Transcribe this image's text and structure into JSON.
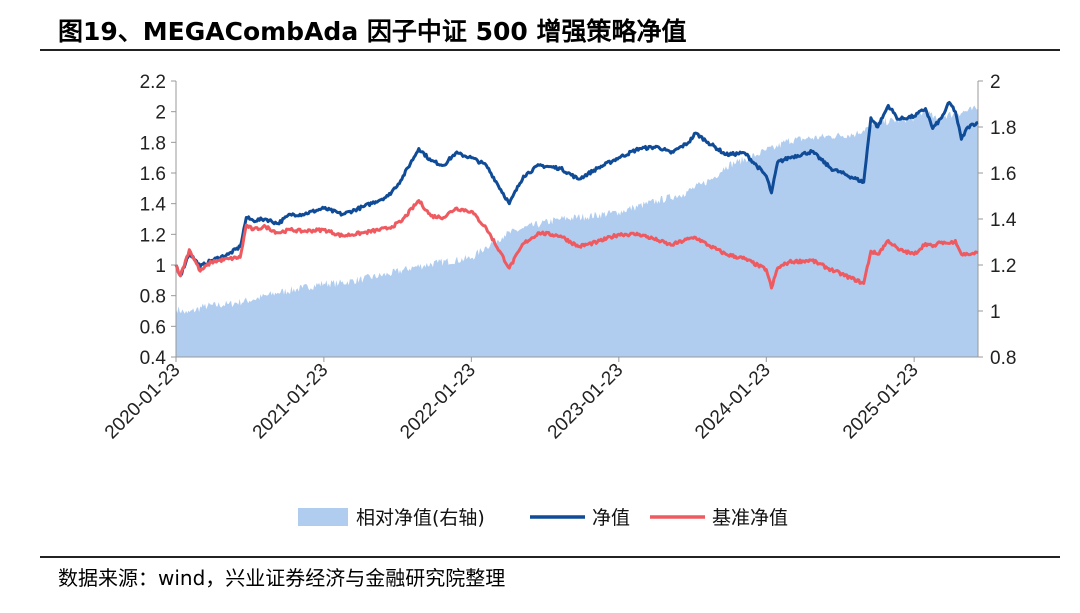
{
  "title": "图19、MEGACombAda 因子中证 500 增强策略净值",
  "source": "数据来源：wind，兴业证券经济与金融研究院整理",
  "colors": {
    "area": "#b0cdf0",
    "net_value": "#0f4b96",
    "benchmark": "#ee5a5f",
    "axis": "#999999"
  },
  "chart_data": {
    "type": "line",
    "x_tick_labels": [
      "2020-01-23",
      "2021-01-23",
      "2022-01-23",
      "2023-01-23",
      "2024-01-23",
      "2025-01-23"
    ],
    "x_range": [
      "2020-01-23",
      "2025-06-30"
    ],
    "y_left": {
      "range": [
        0.4,
        2.2
      ],
      "ticks": [
        "0.4",
        "0.6",
        "0.8",
        "1",
        "1.2",
        "1.4",
        "1.6",
        "1.8",
        "2",
        "2.2"
      ]
    },
    "y_right": {
      "range": [
        0.8,
        2.0
      ],
      "ticks": [
        "0.8",
        "1",
        "1.2",
        "1.4",
        "1.6",
        "1.8",
        "2"
      ]
    },
    "grid": false,
    "legend_position": "bottom",
    "series": [
      {
        "name": "相对净值(右轴)",
        "type": "area",
        "axis": "right",
        "points": [
          [
            "2020-01-23",
            1.01
          ],
          [
            "2020-02-20",
            0.99
          ],
          [
            "2020-04-01",
            1.02
          ],
          [
            "2020-06-01",
            1.03
          ],
          [
            "2020-08-01",
            1.05
          ],
          [
            "2020-10-01",
            1.08
          ],
          [
            "2020-12-01",
            1.1
          ],
          [
            "2021-01-23",
            1.12
          ],
          [
            "2021-03-01",
            1.12
          ],
          [
            "2021-05-01",
            1.14
          ],
          [
            "2021-07-01",
            1.16
          ],
          [
            "2021-09-01",
            1.19
          ],
          [
            "2021-11-01",
            1.21
          ],
          [
            "2022-01-23",
            1.23
          ],
          [
            "2022-03-01",
            1.28
          ],
          [
            "2022-04-15",
            1.33
          ],
          [
            "2022-06-01",
            1.36
          ],
          [
            "2022-07-15",
            1.38
          ],
          [
            "2022-09-01",
            1.4
          ],
          [
            "2022-11-01",
            1.41
          ],
          [
            "2023-01-23",
            1.43
          ],
          [
            "2023-03-01",
            1.45
          ],
          [
            "2023-05-01",
            1.48
          ],
          [
            "2023-07-01",
            1.51
          ],
          [
            "2023-08-15",
            1.55
          ],
          [
            "2023-09-15",
            1.58
          ],
          [
            "2023-10-15",
            1.63
          ],
          [
            "2023-11-15",
            1.65
          ],
          [
            "2024-01-01",
            1.68
          ],
          [
            "2024-01-23",
            1.7
          ],
          [
            "2024-02-15",
            1.71
          ],
          [
            "2024-03-15",
            1.74
          ],
          [
            "2024-05-01",
            1.75
          ],
          [
            "2024-07-01",
            1.76
          ],
          [
            "2024-09-01",
            1.77
          ],
          [
            "2024-10-01",
            1.8
          ],
          [
            "2024-11-01",
            1.82
          ],
          [
            "2025-01-23",
            1.84
          ],
          [
            "2025-02-20",
            1.87
          ],
          [
            "2025-03-20",
            1.83
          ],
          [
            "2025-04-10",
            1.85
          ],
          [
            "2025-05-10",
            1.86
          ],
          [
            "2025-06-30",
            1.88
          ]
        ]
      },
      {
        "name": "净值",
        "type": "line",
        "axis": "left",
        "points": [
          [
            "2020-01-23",
            1.0
          ],
          [
            "2020-02-03",
            0.93
          ],
          [
            "2020-02-25",
            1.08
          ],
          [
            "2020-03-23",
            0.99
          ],
          [
            "2020-04-20",
            1.03
          ],
          [
            "2020-06-01",
            1.07
          ],
          [
            "2020-06-30",
            1.12
          ],
          [
            "2020-07-15",
            1.31
          ],
          [
            "2020-08-01",
            1.29
          ],
          [
            "2020-09-01",
            1.3
          ],
          [
            "2020-10-01",
            1.27
          ],
          [
            "2020-11-01",
            1.33
          ],
          [
            "2020-12-01",
            1.33
          ],
          [
            "2021-01-23",
            1.37
          ],
          [
            "2021-03-10",
            1.33
          ],
          [
            "2021-05-01",
            1.38
          ],
          [
            "2021-07-01",
            1.45
          ],
          [
            "2021-08-01",
            1.55
          ],
          [
            "2021-09-15",
            1.76
          ],
          [
            "2021-10-15",
            1.68
          ],
          [
            "2021-11-15",
            1.65
          ],
          [
            "2021-12-15",
            1.73
          ],
          [
            "2022-01-23",
            1.7
          ],
          [
            "2022-03-01",
            1.65
          ],
          [
            "2022-04-27",
            1.4
          ],
          [
            "2022-06-01",
            1.58
          ],
          [
            "2022-07-10",
            1.65
          ],
          [
            "2022-09-01",
            1.63
          ],
          [
            "2022-10-15",
            1.56
          ],
          [
            "2022-12-01",
            1.63
          ],
          [
            "2023-01-23",
            1.7
          ],
          [
            "2023-03-15",
            1.76
          ],
          [
            "2023-05-01",
            1.77
          ],
          [
            "2023-06-01",
            1.73
          ],
          [
            "2023-07-15",
            1.8
          ],
          [
            "2023-08-01",
            1.86
          ],
          [
            "2023-09-01",
            1.8
          ],
          [
            "2023-10-15",
            1.72
          ],
          [
            "2023-12-01",
            1.73
          ],
          [
            "2024-01-23",
            1.58
          ],
          [
            "2024-02-05",
            1.47
          ],
          [
            "2024-02-20",
            1.67
          ],
          [
            "2024-03-20",
            1.7
          ],
          [
            "2024-05-15",
            1.74
          ],
          [
            "2024-07-01",
            1.63
          ],
          [
            "2024-09-20",
            1.54
          ],
          [
            "2024-10-08",
            1.96
          ],
          [
            "2024-10-25",
            1.9
          ],
          [
            "2024-11-20",
            2.04
          ],
          [
            "2024-12-15",
            1.95
          ],
          [
            "2025-01-23",
            1.97
          ],
          [
            "2025-02-20",
            2.02
          ],
          [
            "2025-03-10",
            1.89
          ],
          [
            "2025-04-01",
            1.96
          ],
          [
            "2025-04-20",
            2.06
          ],
          [
            "2025-05-05",
            2.0
          ],
          [
            "2025-05-20",
            1.82
          ],
          [
            "2025-06-05",
            1.9
          ],
          [
            "2025-06-30",
            1.93
          ]
        ]
      },
      {
        "name": "基准净值",
        "type": "line",
        "axis": "left",
        "points": [
          [
            "2020-01-23",
            1.0
          ],
          [
            "2020-02-03",
            0.93
          ],
          [
            "2020-02-25",
            1.1
          ],
          [
            "2020-03-23",
            0.96
          ],
          [
            "2020-04-20",
            1.02
          ],
          [
            "2020-06-01",
            1.04
          ],
          [
            "2020-06-30",
            1.05
          ],
          [
            "2020-07-15",
            1.26
          ],
          [
            "2020-08-01",
            1.23
          ],
          [
            "2020-09-01",
            1.25
          ],
          [
            "2020-10-01",
            1.21
          ],
          [
            "2020-11-01",
            1.23
          ],
          [
            "2020-12-01",
            1.22
          ],
          [
            "2021-01-23",
            1.23
          ],
          [
            "2021-03-10",
            1.19
          ],
          [
            "2021-05-01",
            1.21
          ],
          [
            "2021-07-01",
            1.24
          ],
          [
            "2021-08-01",
            1.28
          ],
          [
            "2021-09-15",
            1.42
          ],
          [
            "2021-10-15",
            1.32
          ],
          [
            "2021-11-15",
            1.31
          ],
          [
            "2021-12-15",
            1.37
          ],
          [
            "2022-01-23",
            1.35
          ],
          [
            "2022-03-01",
            1.24
          ],
          [
            "2022-04-27",
            0.98
          ],
          [
            "2022-06-01",
            1.14
          ],
          [
            "2022-07-10",
            1.21
          ],
          [
            "2022-09-01",
            1.19
          ],
          [
            "2022-10-15",
            1.12
          ],
          [
            "2022-12-01",
            1.15
          ],
          [
            "2023-01-23",
            1.2
          ],
          [
            "2023-03-15",
            1.2
          ],
          [
            "2023-05-01",
            1.16
          ],
          [
            "2023-06-01",
            1.13
          ],
          [
            "2023-07-15",
            1.17
          ],
          [
            "2023-08-01",
            1.18
          ],
          [
            "2023-09-01",
            1.13
          ],
          [
            "2023-10-15",
            1.07
          ],
          [
            "2023-12-01",
            1.04
          ],
          [
            "2024-01-23",
            0.97
          ],
          [
            "2024-02-05",
            0.85
          ],
          [
            "2024-02-20",
            0.98
          ],
          [
            "2024-03-20",
            1.02
          ],
          [
            "2024-05-15",
            1.03
          ],
          [
            "2024-07-01",
            0.97
          ],
          [
            "2024-09-20",
            0.88
          ],
          [
            "2024-10-08",
            1.09
          ],
          [
            "2024-10-25",
            1.07
          ],
          [
            "2024-11-20",
            1.16
          ],
          [
            "2024-12-15",
            1.1
          ],
          [
            "2025-01-23",
            1.07
          ],
          [
            "2025-02-20",
            1.14
          ],
          [
            "2025-03-10",
            1.12
          ],
          [
            "2025-04-01",
            1.15
          ],
          [
            "2025-04-20",
            1.14
          ],
          [
            "2025-05-05",
            1.16
          ],
          [
            "2025-05-20",
            1.07
          ],
          [
            "2025-06-05",
            1.07
          ],
          [
            "2025-06-30",
            1.08
          ]
        ]
      }
    ]
  }
}
